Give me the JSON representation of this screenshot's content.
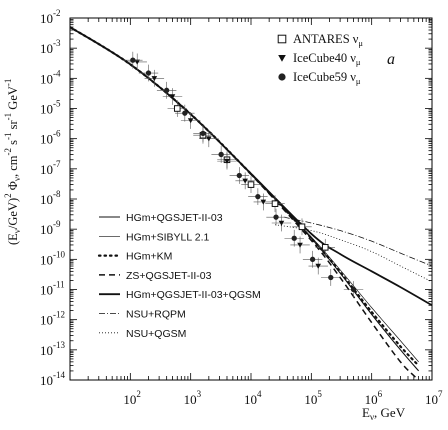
{
  "chart_data": {
    "type": "line",
    "panel_label": "a",
    "y_axis_label": "(E_ν/GeV)^2 Φ_ν, cm^-2 s^-1 sr^-1 GeV^-1",
    "x_axis_label": "E_ν, GeV",
    "x_scale": "log",
    "y_scale": "log",
    "xlim": [
      10,
      10000000
    ],
    "ylim": [
      1e-14,
      0.01
    ],
    "x_ticks": [
      {
        "value": 100,
        "base": "10",
        "exp": "2"
      },
      {
        "value": 1000,
        "base": "10",
        "exp": "3"
      },
      {
        "value": 10000,
        "base": "10",
        "exp": "4"
      },
      {
        "value": 100000,
        "base": "10",
        "exp": "5"
      },
      {
        "value": 1000000,
        "base": "10",
        "exp": "6"
      },
      {
        "value": 10000000,
        "base": "10",
        "exp": "7"
      }
    ],
    "y_ticks": [
      {
        "value": 0.01,
        "base": "10",
        "exp": "-2"
      },
      {
        "value": 0.001,
        "base": "10",
        "exp": "-3"
      },
      {
        "value": 0.0001,
        "base": "10",
        "exp": "-4"
      },
      {
        "value": 1e-05,
        "base": "10",
        "exp": "-5"
      },
      {
        "value": 1e-06,
        "base": "10",
        "exp": "-6"
      },
      {
        "value": 1e-07,
        "base": "10",
        "exp": "-7"
      },
      {
        "value": 1e-08,
        "base": "10",
        "exp": "-8"
      },
      {
        "value": 1e-09,
        "base": "10",
        "exp": "-9"
      },
      {
        "value": 1e-10,
        "base": "10",
        "exp": "-10"
      },
      {
        "value": 1e-11,
        "base": "10",
        "exp": "-11"
      },
      {
        "value": 1e-12,
        "base": "10",
        "exp": "-12"
      },
      {
        "value": 1e-13,
        "base": "10",
        "exp": "-13"
      },
      {
        "value": 1e-14,
        "base": "10",
        "exp": "-14"
      }
    ],
    "data_series": [
      {
        "name": "ANTARES ν_μ",
        "marker": "open-square",
        "points": [
          [
            600,
            1e-05
          ],
          [
            1600,
            1.3e-06
          ],
          [
            4000,
            2e-07
          ],
          [
            10000,
            3e-08
          ],
          [
            25000,
            7e-09
          ],
          [
            70000,
            1.2e-09
          ],
          [
            170000,
            2.5e-10
          ]
        ]
      },
      {
        "name": "IceCube40 ν_μ",
        "marker": "filled-triangle-down",
        "points": [
          [
            130,
            0.00035
          ],
          [
            250,
            0.0001
          ],
          [
            500,
            2.5e-05
          ],
          [
            1000,
            4e-06
          ],
          [
            2000,
            1e-06
          ],
          [
            4000,
            1.8e-07
          ],
          [
            8000,
            4e-08
          ],
          [
            16000,
            8e-09
          ],
          [
            32000,
            1.6e-09
          ],
          [
            65000,
            3e-10
          ],
          [
            130000,
            6e-11
          ]
        ]
      },
      {
        "name": "IceCube59 ν_μ",
        "marker": "filled-circle",
        "points": [
          [
            110,
            0.0004
          ],
          [
            200,
            0.00015
          ],
          [
            400,
            4e-05
          ],
          [
            800,
            7e-06
          ],
          [
            1600,
            1.5e-06
          ],
          [
            3200,
            3e-07
          ],
          [
            6400,
            6e-08
          ],
          [
            13000,
            1.2e-08
          ],
          [
            26000,
            2.5e-09
          ],
          [
            52000,
            5e-10
          ],
          [
            105000,
            1e-10
          ],
          [
            210000,
            2.5e-11
          ],
          [
            500000,
            1e-11
          ]
        ]
      }
    ],
    "curves": [
      {
        "name": "HGm+QGSJET-II-03",
        "style": "solid",
        "width": 1.1,
        "points": [
          [
            10,
            0.005
          ],
          [
            100,
            0.00029
          ],
          [
            1000,
            6.5e-06
          ],
          [
            10000,
            6.8e-08
          ],
          [
            100000,
            5e-10
          ],
          [
            300000,
            3.5e-11
          ],
          [
            1000000,
            1.5e-12
          ],
          [
            3000000,
            1e-13
          ],
          [
            6000000,
            2e-14
          ]
        ]
      },
      {
        "name": "HGm+SIBYLL 2.1",
        "style": "solid-thin",
        "width": 0.7,
        "points": [
          [
            10,
            0.005
          ],
          [
            100,
            0.00028
          ],
          [
            1000,
            6.3e-06
          ],
          [
            10000,
            6.6e-08
          ],
          [
            100000,
            5.5e-10
          ],
          [
            300000,
            4.5e-11
          ],
          [
            1000000,
            2.5e-12
          ],
          [
            3000000,
            2e-13
          ],
          [
            6000000,
            4e-14
          ]
        ]
      },
      {
        "name": "HGm+KM",
        "style": "dotted-bold",
        "width": 2.0,
        "points": [
          [
            10,
            0.005
          ],
          [
            100,
            0.00029
          ],
          [
            1000,
            6.5e-06
          ],
          [
            10000,
            6.8e-08
          ],
          [
            100000,
            5e-10
          ],
          [
            300000,
            3.8e-11
          ],
          [
            1000000,
            1.8e-12
          ],
          [
            3000000,
            1.3e-13
          ],
          [
            6000000,
            3e-14
          ]
        ]
      },
      {
        "name": "ZS+QGSJET-II-03",
        "style": "dashed",
        "width": 1.4,
        "points": [
          [
            10,
            0.005
          ],
          [
            100,
            0.00029
          ],
          [
            1000,
            6.3e-06
          ],
          [
            10000,
            6.5e-08
          ],
          [
            100000,
            4.2e-10
          ],
          [
            300000,
            2.5e-11
          ],
          [
            1000000,
            8e-13
          ],
          [
            3000000,
            4e-14
          ],
          [
            6000000,
            1e-14
          ]
        ]
      },
      {
        "name": "HGm+QGSJET-II-03+QGSM",
        "style": "solid-bold",
        "width": 1.8,
        "points": [
          [
            10,
            0.005
          ],
          [
            100,
            0.00029
          ],
          [
            1000,
            6.5e-06
          ],
          [
            10000,
            6.9e-08
          ],
          [
            100000,
            7e-10
          ],
          [
            300000,
            1.5e-10
          ],
          [
            1000000,
            4e-11
          ],
          [
            3000000,
            1.2e-11
          ],
          [
            10000000,
            3e-12
          ]
        ]
      },
      {
        "name": "NSU+RQPM",
        "style": "dash-dot",
        "width": 0.8,
        "points": [
          [
            35000,
            2.5e-09
          ],
          [
            100000,
            1.6e-09
          ],
          [
            300000,
            9e-10
          ],
          [
            1000000,
            4e-10
          ],
          [
            3000000,
            1.6e-10
          ],
          [
            10000000,
            6e-11
          ]
        ]
      },
      {
        "name": "NSU+QGSM",
        "style": "dotted-thin",
        "width": 0.8,
        "points": [
          [
            25000,
            1.4e-09
          ],
          [
            100000,
            9e-10
          ],
          [
            300000,
            4.5e-10
          ],
          [
            1000000,
            1.8e-10
          ],
          [
            3000000,
            6e-11
          ],
          [
            10000000,
            1.8e-11
          ]
        ]
      }
    ],
    "legend_points": [
      {
        "label": "ANTARES ν",
        "sub": "μ",
        "marker": "open-square"
      },
      {
        "label": "IceCube40 ν",
        "sub": "μ",
        "marker": "filled-triangle-down"
      },
      {
        "label": "IceCube59 ν",
        "sub": "μ",
        "marker": "filled-circle"
      }
    ],
    "legend_curves": [
      {
        "label": "HGm+QGSJET-II-03",
        "style": "solid"
      },
      {
        "label": "HGm+SIBYLL 2.1",
        "style": "solid-thin"
      },
      {
        "label": "HGm+KM",
        "style": "dotted-bold"
      },
      {
        "label": "ZS+QGSJET-II-03",
        "style": "dashed"
      },
      {
        "label": "HGm+QGSJET-II-03+QGSM",
        "style": "solid-bold"
      },
      {
        "label": "NSU+RQPM",
        "style": "dash-dot"
      },
      {
        "label": "NSU+QGSM",
        "style": "dotted-thin"
      }
    ],
    "grid": false,
    "legend_placement_points": "top-right",
    "legend_placement_curves": "lower-left"
  }
}
